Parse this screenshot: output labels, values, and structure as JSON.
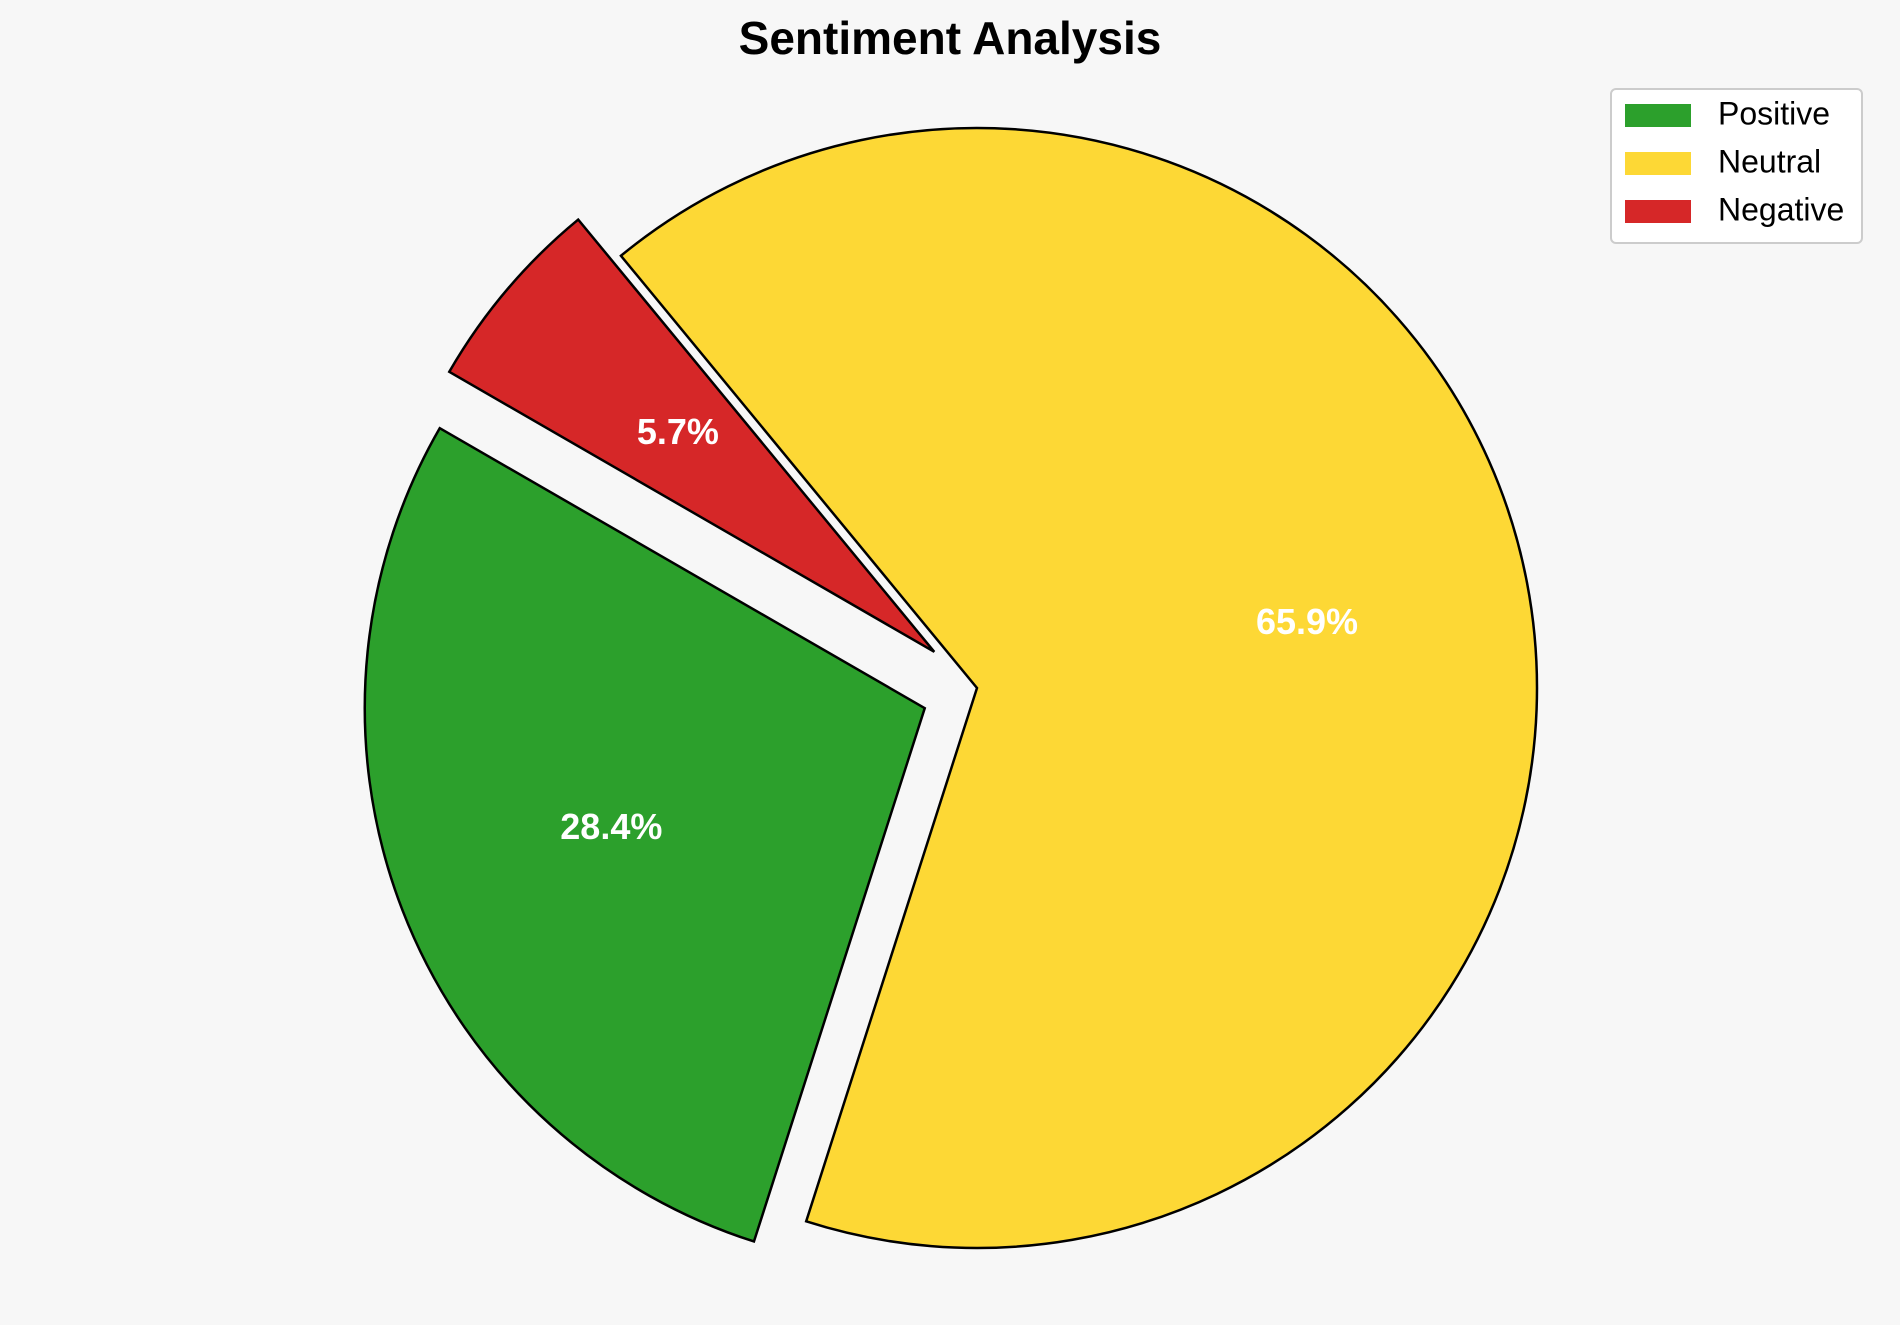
{
  "chart_data": {
    "type": "pie",
    "title": "Sentiment Analysis",
    "categories": [
      "Positive",
      "Neutral",
      "Negative"
    ],
    "values": [
      28.4,
      65.9,
      5.7
    ],
    "value_labels": [
      "28.4%",
      "65.9%",
      "5.7%"
    ],
    "colors": [
      "#2ca02c",
      "#fdd835",
      "#d62728"
    ],
    "exploded": [
      true,
      false,
      true
    ],
    "legend_position": "upper right",
    "label_color": "#ffffff",
    "edge_color": "#000000"
  },
  "background_color": "#f7f7f7"
}
